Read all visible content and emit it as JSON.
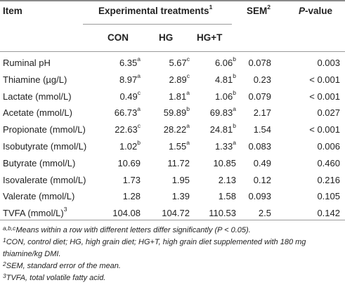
{
  "header": {
    "item": "Item",
    "group": "Experimental treatments",
    "group_sup": "1",
    "con": "CON",
    "hg": "HG",
    "hgt": "HG+T",
    "sem": "SEM",
    "sem_sup": "2",
    "p_prefix": "P",
    "p_suffix": "-value"
  },
  "rows": [
    {
      "item": "Ruminal pH",
      "item_sup": "",
      "con": "6.35",
      "con_sup": "a",
      "hg": "5.67",
      "hg_sup": "c",
      "hgt": "6.06",
      "hgt_sup": "b",
      "sem": "0.078",
      "p": "0.003"
    },
    {
      "item": "Thiamine (µg/L)",
      "item_sup": "",
      "con": "8.97",
      "con_sup": "a",
      "hg": "2.89",
      "hg_sup": "c",
      "hgt": "4.81",
      "hgt_sup": "b",
      "sem": "0.23",
      "p": "< 0.001"
    },
    {
      "item": "Lactate (mmol/L)",
      "item_sup": "",
      "con": "0.49",
      "con_sup": "c",
      "hg": "1.81",
      "hg_sup": "a",
      "hgt": "1.06",
      "hgt_sup": "b",
      "sem": "0.079",
      "p": "< 0.001"
    },
    {
      "item": "Acetate (mmol/L)",
      "item_sup": "",
      "con": "66.73",
      "con_sup": "a",
      "hg": "59.89",
      "hg_sup": "b",
      "hgt": "69.83",
      "hgt_sup": "a",
      "sem": "2.17",
      "p": "0.027"
    },
    {
      "item": "Propionate (mmol/L)",
      "item_sup": "",
      "con": "22.63",
      "con_sup": "c",
      "hg": "28.22",
      "hg_sup": "a",
      "hgt": "24.81",
      "hgt_sup": "b",
      "sem": "1.54",
      "p": "< 0.001"
    },
    {
      "item": "Isobutyrate (mmol/L)",
      "item_sup": "",
      "con": "1.02",
      "con_sup": "b",
      "hg": "1.55",
      "hg_sup": "a",
      "hgt": "1.33",
      "hgt_sup": "a",
      "sem": "0.083",
      "p": "0.006"
    },
    {
      "item": "Butyrate (mmol/L)",
      "item_sup": "",
      "con": "10.69",
      "con_sup": "",
      "hg": "11.72",
      "hg_sup": "",
      "hgt": "10.85",
      "hgt_sup": "",
      "sem": "0.49",
      "p": "0.460"
    },
    {
      "item": "Isovalerate (mmol/L)",
      "item_sup": "",
      "con": "1.73",
      "con_sup": "",
      "hg": "1.95",
      "hg_sup": "",
      "hgt": "2.13",
      "hgt_sup": "",
      "sem": "0.12",
      "p": "0.216"
    },
    {
      "item": "Valerate (mmol/L)",
      "item_sup": "",
      "con": "1.28",
      "con_sup": "",
      "hg": "1.39",
      "hg_sup": "",
      "hgt": "1.58",
      "hgt_sup": "",
      "sem": "0.093",
      "p": "0.105"
    },
    {
      "item": "TVFA (mmol/L)",
      "item_sup": "3",
      "con": "104.08",
      "con_sup": "",
      "hg": "104.72",
      "hg_sup": "",
      "hgt": "110.53",
      "hgt_sup": "",
      "sem": "2.5",
      "p": "0.142"
    }
  ],
  "footnotes": {
    "f_abc_sup": "a,b,c",
    "f_abc": "Means within a row with different letters differ significantly (P < 0.05).",
    "f1_sup": "1",
    "f1_a": "CON, control diet; HG, high grain diet; HG+T, high grain diet supplemented with 180 mg",
    "f1_b": "thiamine/kg DMI.",
    "f2_sup": "2",
    "f2": "SEM, standard error of the mean.",
    "f3_sup": "3",
    "f3": "TVFA, total volatile fatty acid."
  }
}
